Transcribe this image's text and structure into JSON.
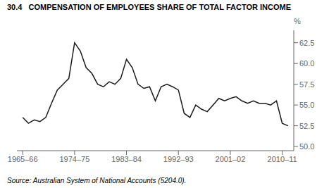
{
  "chart_data": {
    "type": "line",
    "title": "30.4   COMPENSATION OF EMPLOYEES SHARE OF TOTAL FACTOR INCOME",
    "ylabel": "%",
    "annotations": [
      "Source: Australian System of National Accounts (5204.0)."
    ],
    "x": [
      1965.5,
      1966.5,
      1967.5,
      1968.5,
      1969.5,
      1970.5,
      1971.5,
      1972.5,
      1973.5,
      1974.5,
      1975.5,
      1976.5,
      1977.5,
      1978.5,
      1979.5,
      1980.5,
      1981.5,
      1982.5,
      1983.5,
      1984.5,
      1985.5,
      1986.5,
      1987.5,
      1988.5,
      1989.5,
      1990.5,
      1991.5,
      1992.5,
      1993.5,
      1994.5,
      1995.5,
      1996.5,
      1997.5,
      1998.5,
      1999.5,
      2000.5,
      2001.5,
      2002.5,
      2003.5,
      2004.5,
      2005.5,
      2006.5,
      2007.5,
      2008.5,
      2009.5,
      2010.5,
      2011.5
    ],
    "values": [
      53.5,
      52.8,
      53.2,
      53.0,
      53.5,
      55.2,
      56.8,
      57.5,
      58.2,
      62.5,
      61.5,
      59.5,
      58.8,
      57.5,
      57.2,
      57.8,
      57.5,
      58.2,
      60.5,
      59.5,
      57.5,
      57.0,
      57.2,
      55.5,
      57.2,
      57.5,
      57.2,
      56.8,
      54.0,
      53.5,
      55.0,
      54.5,
      54.2,
      55.0,
      55.8,
      55.5,
      55.8,
      56.0,
      55.5,
      55.2,
      55.5,
      55.2,
      55.2,
      55.0,
      55.5,
      52.8,
      52.5
    ],
    "color": "#1a1a1a",
    "xlim": [
      1964.5,
      2012.5
    ],
    "xticks": [
      {
        "value": 1965.5,
        "label": "1965–66"
      },
      {
        "value": 1974.5,
        "label": "1974–75"
      },
      {
        "value": 1983.5,
        "label": "1983–84"
      },
      {
        "value": 1992.5,
        "label": "1992–93"
      },
      {
        "value": 2001.5,
        "label": "2001–02"
      },
      {
        "value": 2010.5,
        "label": "2010–11"
      }
    ],
    "ylim": [
      49.5,
      64.0
    ],
    "yticks": [
      {
        "value": 50,
        "label": "50.0"
      },
      52.5,
      {
        "value": 55,
        "label": "55.0"
      },
      57.5,
      {
        "value": 60,
        "label": "60.0"
      },
      62.5
    ],
    "grid": false
  }
}
